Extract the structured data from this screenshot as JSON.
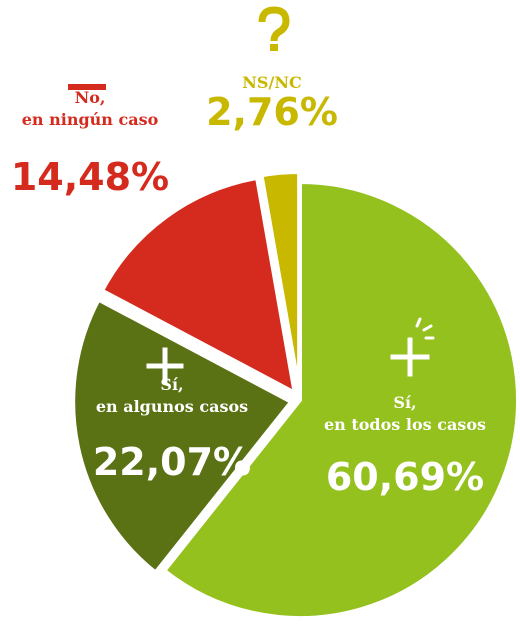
{
  "chart_data": {
    "type": "pie",
    "categories": [
      [
        "Sí,",
        "en todos los casos"
      ],
      [
        "Sí,",
        "en algunos casos"
      ],
      [
        "No,",
        "en ningún caso"
      ],
      [
        "NS/NC"
      ]
    ],
    "values": [
      60.69,
      22.07,
      14.48,
      2.76
    ],
    "value_labels": [
      "60,69%",
      "22,07%",
      "14,48%",
      "2,76%"
    ],
    "colors": [
      "#95c11f",
      "#5a7114",
      "#d52b1e",
      "#c9b800"
    ]
  }
}
